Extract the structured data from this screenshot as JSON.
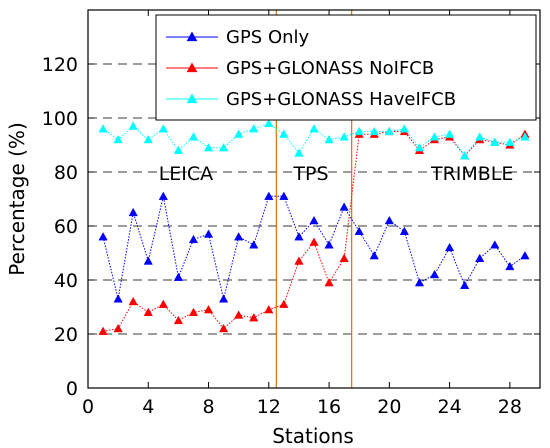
{
  "chart_data": {
    "type": "line",
    "xlabel": "Stations",
    "ylabel": "Percentage (%)",
    "xlim": [
      0,
      30
    ],
    "ylim": [
      0,
      140
    ],
    "xticks": [
      0,
      4,
      8,
      12,
      16,
      20,
      24,
      28
    ],
    "yticks": [
      0,
      20,
      40,
      60,
      80,
      100,
      120
    ],
    "grid": "horizontal dashed at 40, 60, 80, 100, 120",
    "legend_position": "top-right",
    "x": [
      1,
      2,
      3,
      4,
      5,
      6,
      7,
      8,
      9,
      10,
      11,
      12,
      13,
      14,
      15,
      16,
      17,
      18,
      19,
      20,
      21,
      22,
      23,
      24,
      25,
      26,
      27,
      28,
      29
    ],
    "series": [
      {
        "name": "GPS Only",
        "color": "#0000ff",
        "marker": "triangle-up",
        "values": [
          56,
          33,
          65,
          47,
          71,
          41,
          55,
          57,
          33,
          56,
          53,
          71,
          71,
          56,
          62,
          53,
          67,
          58,
          49,
          62,
          58,
          39,
          42,
          52,
          38,
          48,
          53,
          45,
          49
        ]
      },
      {
        "name": "GPS+GLONASS NoIFCB",
        "color": "#ff0000",
        "marker": "triangle-up",
        "values": [
          21,
          22,
          32,
          28,
          31,
          25,
          28,
          29,
          22,
          27,
          26,
          29,
          31,
          47,
          54,
          39,
          48,
          94,
          94,
          95,
          95,
          88,
          92,
          93,
          86,
          92,
          91,
          90,
          94
        ]
      },
      {
        "name": "GPS+GLONASS HaveIFCB",
        "color": "#00ffff",
        "marker": "triangle-up",
        "values": [
          96,
          92,
          97,
          92,
          96,
          88,
          93,
          89,
          89,
          94,
          96,
          98,
          94,
          87,
          96,
          92,
          93,
          95,
          95,
          95,
          96,
          89,
          93,
          94,
          86,
          93,
          91,
          91,
          93
        ]
      }
    ],
    "vertical_lines": [
      {
        "x": 12.5,
        "color": "#e07000"
      },
      {
        "x": 17.5,
        "color": "#e07000"
      }
    ],
    "region_labels": [
      {
        "text": "LEICA",
        "x": 6.5,
        "y": 77
      },
      {
        "text": "TPS",
        "x": 14.8,
        "y": 77
      },
      {
        "text": "TRIMBLE",
        "x": 25.5,
        "y": 77
      }
    ]
  }
}
